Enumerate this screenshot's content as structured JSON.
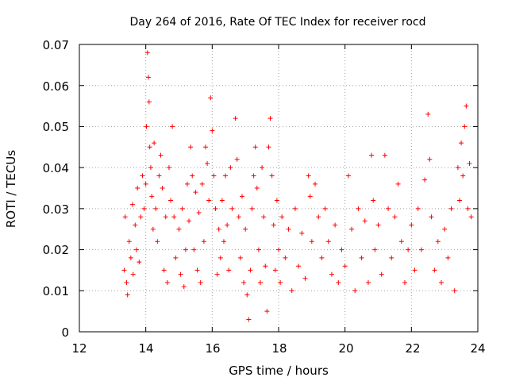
{
  "chart_data": {
    "type": "scatter",
    "title": "Day 264 of 2016, Rate Of TEC Index for receiver rocd",
    "xlabel": "GPS time / hours",
    "ylabel": "ROTI / TECUs",
    "xlim": [
      12,
      24
    ],
    "ylim": [
      0,
      0.07
    ],
    "xticks": [
      12,
      14,
      16,
      18,
      20,
      22,
      24
    ],
    "xtick_labels": [
      "12",
      "14",
      "16",
      "18",
      "20",
      "22",
      "24"
    ],
    "yticks": [
      0,
      0.01,
      0.02,
      0.03,
      0.04,
      0.05,
      0.06,
      0.07
    ],
    "ytick_labels": [
      "0",
      "0.01",
      "0.02",
      "0.03",
      "0.04",
      "0.05",
      "0.06",
      "0.07"
    ],
    "grid": true,
    "marker": "+",
    "color": "#ff0000",
    "series": [
      {
        "name": "ROTI",
        "points": [
          [
            13.35,
            0.015
          ],
          [
            13.38,
            0.028
          ],
          [
            13.42,
            0.012
          ],
          [
            13.45,
            0.009
          ],
          [
            13.5,
            0.022
          ],
          [
            13.55,
            0.018
          ],
          [
            13.6,
            0.031
          ],
          [
            13.62,
            0.014
          ],
          [
            13.68,
            0.026
          ],
          [
            13.72,
            0.02
          ],
          [
            13.75,
            0.035
          ],
          [
            13.8,
            0.017
          ],
          [
            13.85,
            0.028
          ],
          [
            13.9,
            0.038
          ],
          [
            13.95,
            0.03
          ],
          [
            14.0,
            0.036
          ],
          [
            14.02,
            0.05
          ],
          [
            14.05,
            0.068
          ],
          [
            14.08,
            0.062
          ],
          [
            14.1,
            0.056
          ],
          [
            14.12,
            0.045
          ],
          [
            14.15,
            0.04
          ],
          [
            14.18,
            0.033
          ],
          [
            14.22,
            0.025
          ],
          [
            14.25,
            0.046
          ],
          [
            14.3,
            0.03
          ],
          [
            14.35,
            0.022
          ],
          [
            14.4,
            0.038
          ],
          [
            14.45,
            0.043
          ],
          [
            14.5,
            0.035
          ],
          [
            14.55,
            0.015
          ],
          [
            14.6,
            0.028
          ],
          [
            14.65,
            0.012
          ],
          [
            14.7,
            0.04
          ],
          [
            14.75,
            0.032
          ],
          [
            14.8,
            0.05
          ],
          [
            14.85,
            0.028
          ],
          [
            14.9,
            0.018
          ],
          [
            15.0,
            0.025
          ],
          [
            15.05,
            0.014
          ],
          [
            15.1,
            0.03
          ],
          [
            15.15,
            0.011
          ],
          [
            15.2,
            0.02
          ],
          [
            15.25,
            0.036
          ],
          [
            15.3,
            0.027
          ],
          [
            15.35,
            0.045
          ],
          [
            15.4,
            0.038
          ],
          [
            15.45,
            0.02
          ],
          [
            15.5,
            0.034
          ],
          [
            15.55,
            0.015
          ],
          [
            15.6,
            0.029
          ],
          [
            15.65,
            0.012
          ],
          [
            15.7,
            0.036
          ],
          [
            15.75,
            0.022
          ],
          [
            15.8,
            0.045
          ],
          [
            15.85,
            0.041
          ],
          [
            15.9,
            0.032
          ],
          [
            15.95,
            0.057
          ],
          [
            16.0,
            0.049
          ],
          [
            16.05,
            0.038
          ],
          [
            16.1,
            0.03
          ],
          [
            16.15,
            0.014
          ],
          [
            16.2,
            0.025
          ],
          [
            16.25,
            0.018
          ],
          [
            16.3,
            0.032
          ],
          [
            16.35,
            0.022
          ],
          [
            16.4,
            0.038
          ],
          [
            16.45,
            0.026
          ],
          [
            16.5,
            0.015
          ],
          [
            16.55,
            0.04
          ],
          [
            16.6,
            0.03
          ],
          [
            16.7,
            0.052
          ],
          [
            16.75,
            0.042
          ],
          [
            16.8,
            0.028
          ],
          [
            16.85,
            0.018
          ],
          [
            16.9,
            0.033
          ],
          [
            16.95,
            0.012
          ],
          [
            17.0,
            0.025
          ],
          [
            17.05,
            0.009
          ],
          [
            17.1,
            0.003
          ],
          [
            17.15,
            0.015
          ],
          [
            17.2,
            0.03
          ],
          [
            17.25,
            0.038
          ],
          [
            17.3,
            0.045
          ],
          [
            17.35,
            0.035
          ],
          [
            17.4,
            0.02
          ],
          [
            17.45,
            0.012
          ],
          [
            17.5,
            0.04
          ],
          [
            17.55,
            0.028
          ],
          [
            17.6,
            0.016
          ],
          [
            17.65,
            0.005
          ],
          [
            17.7,
            0.045
          ],
          [
            17.75,
            0.052
          ],
          [
            17.8,
            0.038
          ],
          [
            17.85,
            0.026
          ],
          [
            17.9,
            0.015
          ],
          [
            17.95,
            0.032
          ],
          [
            18.0,
            0.02
          ],
          [
            18.05,
            0.012
          ],
          [
            18.1,
            0.028
          ],
          [
            18.2,
            0.018
          ],
          [
            18.3,
            0.025
          ],
          [
            18.4,
            0.01
          ],
          [
            18.5,
            0.03
          ],
          [
            18.6,
            0.016
          ],
          [
            18.7,
            0.024
          ],
          [
            18.8,
            0.013
          ],
          [
            18.9,
            0.038
          ],
          [
            18.95,
            0.033
          ],
          [
            19.0,
            0.022
          ],
          [
            19.1,
            0.036
          ],
          [
            19.2,
            0.028
          ],
          [
            19.3,
            0.018
          ],
          [
            19.4,
            0.03
          ],
          [
            19.5,
            0.022
          ],
          [
            19.6,
            0.014
          ],
          [
            19.7,
            0.026
          ],
          [
            19.8,
            0.012
          ],
          [
            19.9,
            0.02
          ],
          [
            20.0,
            0.016
          ],
          [
            20.1,
            0.038
          ],
          [
            20.2,
            0.025
          ],
          [
            20.3,
            0.01
          ],
          [
            20.4,
            0.03
          ],
          [
            20.5,
            0.018
          ],
          [
            20.6,
            0.027
          ],
          [
            20.7,
            0.012
          ],
          [
            20.8,
            0.043
          ],
          [
            20.85,
            0.032
          ],
          [
            20.9,
            0.02
          ],
          [
            21.0,
            0.026
          ],
          [
            21.1,
            0.014
          ],
          [
            21.2,
            0.043
          ],
          [
            21.3,
            0.03
          ],
          [
            21.4,
            0.018
          ],
          [
            21.5,
            0.028
          ],
          [
            21.6,
            0.036
          ],
          [
            21.7,
            0.022
          ],
          [
            21.8,
            0.012
          ],
          [
            21.9,
            0.02
          ],
          [
            22.0,
            0.026
          ],
          [
            22.1,
            0.015
          ],
          [
            22.2,
            0.03
          ],
          [
            22.3,
            0.02
          ],
          [
            22.4,
            0.037
          ],
          [
            22.5,
            0.053
          ],
          [
            22.55,
            0.042
          ],
          [
            22.6,
            0.028
          ],
          [
            22.7,
            0.015
          ],
          [
            22.8,
            0.022
          ],
          [
            22.9,
            0.012
          ],
          [
            23.0,
            0.025
          ],
          [
            23.1,
            0.018
          ],
          [
            23.2,
            0.03
          ],
          [
            23.3,
            0.01
          ],
          [
            23.4,
            0.04
          ],
          [
            23.45,
            0.032
          ],
          [
            23.5,
            0.046
          ],
          [
            23.55,
            0.038
          ],
          [
            23.6,
            0.05
          ],
          [
            23.65,
            0.055
          ],
          [
            23.7,
            0.03
          ],
          [
            23.75,
            0.041
          ],
          [
            23.8,
            0.028
          ]
        ]
      }
    ]
  }
}
